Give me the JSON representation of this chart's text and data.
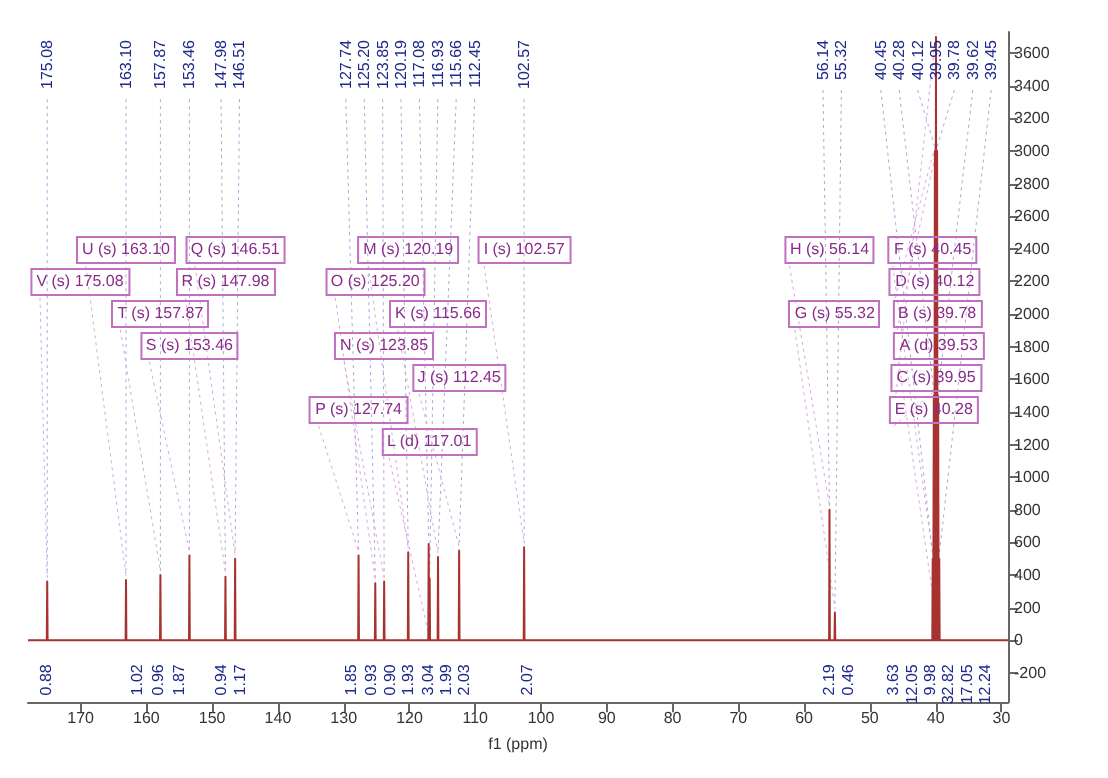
{
  "chart_data": {
    "type": "line",
    "xlabel": "f1 (ppm)",
    "xlim": [
      178,
      29
    ],
    "xticks": [
      170,
      160,
      150,
      140,
      130,
      120,
      110,
      100,
      90,
      80,
      70,
      60,
      50,
      40,
      30
    ],
    "ylim": [
      -380,
      3730
    ],
    "yticks": [
      -200,
      0,
      200,
      400,
      600,
      800,
      1000,
      1200,
      1400,
      1600,
      1800,
      2000,
      2200,
      2400,
      2600,
      2800,
      3000,
      3200,
      3400,
      3600
    ],
    "grid": false,
    "marker": "none",
    "line_style": "solid",
    "series": [
      {
        "color": "#a8322f",
        "x": [
          178,
          175.14,
          175.08,
          175.02,
          163.16,
          163.1,
          163.04,
          157.93,
          157.87,
          157.81,
          153.52,
          153.46,
          153.4,
          148.04,
          147.98,
          147.92,
          146.57,
          146.51,
          146.45,
          127.8,
          127.74,
          127.68,
          125.26,
          125.2,
          125.14,
          123.91,
          123.85,
          123.79,
          120.25,
          120.19,
          120.13,
          117.14,
          117.08,
          117.0,
          116.93,
          116.87,
          115.72,
          115.66,
          115.6,
          112.51,
          112.45,
          112.39,
          102.63,
          102.57,
          102.51,
          56.2,
          56.14,
          56.08,
          55.38,
          55.32,
          55.26,
          40.51,
          40.45,
          40.37,
          40.28,
          40.2,
          40.12,
          40.04,
          39.95,
          39.87,
          39.78,
          39.7,
          39.62,
          39.54,
          39.45,
          39.39,
          29
        ],
        "values": [
          0,
          0,
          360,
          0,
          0,
          370,
          0,
          0,
          400,
          0,
          0,
          520,
          0,
          0,
          390,
          0,
          0,
          500,
          0,
          0,
          520,
          0,
          0,
          350,
          0,
          0,
          360,
          0,
          0,
          540,
          0,
          0,
          590,
          0,
          380,
          0,
          0,
          510,
          0,
          0,
          550,
          0,
          0,
          570,
          0,
          0,
          800,
          0,
          0,
          170,
          0,
          0,
          500,
          0,
          1500,
          0,
          3000,
          0,
          3700,
          0,
          3000,
          0,
          1500,
          0,
          500,
          0,
          0
        ]
      }
    ],
    "annotations": [
      {
        "text": "175.08",
        "x": 175.08,
        "y": 360
      },
      {
        "text": "163.10",
        "x": 163.1,
        "y": 370
      },
      {
        "text": "157.87",
        "x": 157.87,
        "y": 400
      },
      {
        "text": "153.46",
        "x": 153.46,
        "y": 520
      },
      {
        "text": "147.98",
        "x": 147.98,
        "y": 390
      },
      {
        "text": "146.51",
        "x": 146.51,
        "y": 500
      },
      {
        "text": "127.74",
        "x": 127.74,
        "y": 520
      },
      {
        "text": "125.20",
        "x": 125.2,
        "y": 350
      },
      {
        "text": "123.85",
        "x": 123.85,
        "y": 360
      },
      {
        "text": "120.19",
        "x": 120.19,
        "y": 540
      },
      {
        "text": "117.08",
        "x": 117.08,
        "y": 590
      },
      {
        "text": "116.93",
        "x": 116.93,
        "y": 380
      },
      {
        "text": "115.66",
        "x": 115.66,
        "y": 510
      },
      {
        "text": "112.45",
        "x": 112.45,
        "y": 550
      },
      {
        "text": "102.57",
        "x": 102.57,
        "y": 570
      },
      {
        "text": "56.14",
        "x": 56.14,
        "y": 800
      },
      {
        "text": "55.32",
        "x": 55.32,
        "y": 170
      },
      {
        "text": "40.45",
        "x": 40.45,
        "y": 500
      },
      {
        "text": "40.28",
        "x": 40.28,
        "y": 1500
      },
      {
        "text": "40.12",
        "x": 40.12,
        "y": 3000
      },
      {
        "text": "39.95",
        "x": 39.95,
        "y": 3700
      },
      {
        "text": "39.78",
        "x": 39.78,
        "y": 3000
      },
      {
        "text": "39.62",
        "x": 39.62,
        "y": 1500
      },
      {
        "text": "39.45",
        "x": 39.45,
        "y": 500
      },
      {
        "text": "M (s) 120.19",
        "x": 120.19,
        "y": 540
      },
      {
        "text": "U (s) 163.10",
        "x": 163.1,
        "y": 370
      },
      {
        "text": "R (s) 147.98",
        "x": 147.98,
        "y": 390
      },
      {
        "text": "O (s) 125.20",
        "x": 125.2,
        "y": 350
      },
      {
        "text": "K (s) 115.66",
        "x": 115.66,
        "y": 510
      },
      {
        "text": "H (s) 56.14",
        "x": 56.14,
        "y": 800
      },
      {
        "text": "F (s) 40.45",
        "x": 40.45,
        "y": 500
      },
      {
        "text": "D (s) 40.12",
        "x": 40.12,
        "y": 3000
      },
      {
        "text": "B (s) 39.78",
        "x": 39.78,
        "y": 3000
      },
      {
        "text": "V (s) 175.08",
        "x": 175.08,
        "y": 360
      },
      {
        "text": "T (s) 157.87",
        "x": 157.87,
        "y": 400
      },
      {
        "text": "Q (s) 146.51",
        "x": 146.51,
        "y": 500
      },
      {
        "text": "N (s) 123.85",
        "x": 123.85,
        "y": 360
      },
      {
        "text": "J (s) 112.45",
        "x": 112.45,
        "y": 550
      },
      {
        "text": "I (s) 102.57",
        "x": 102.57,
        "y": 570
      },
      {
        "text": "G (s) 55.32",
        "x": 55.32,
        "y": 170
      },
      {
        "text": "A (d) 39.53",
        "x": 39.53,
        "y": 0
      },
      {
        "text": "S (s) 153.46",
        "x": 153.46,
        "y": 520
      },
      {
        "text": "P (s) 127.74",
        "x": 127.74,
        "y": 520
      },
      {
        "text": "L (d) 117.01",
        "x": 117.01,
        "y": 0
      },
      {
        "text": "C (s) 39.95",
        "x": 39.95,
        "y": 3700
      },
      {
        "text": "E (s) 40.28",
        "x": 40.28,
        "y": 1500
      },
      {
        "text": "0.88",
        "x": 175.2,
        "y": 0
      },
      {
        "text": "1.02",
        "x": 161.4,
        "y": 0
      },
      {
        "text": "0.96",
        "x": 158.3,
        "y": 0
      },
      {
        "text": "1.87",
        "x": 155.1,
        "y": 0
      },
      {
        "text": "0.94",
        "x": 148.7,
        "y": 0
      },
      {
        "text": "1.17",
        "x": 145.8,
        "y": 0
      },
      {
        "text": "1.85",
        "x": 128.9,
        "y": 0
      },
      {
        "text": "0.93",
        "x": 125.7,
        "y": 0
      },
      {
        "text": "0.90",
        "x": 123.1,
        "y": 0
      },
      {
        "text": "1.93",
        "x": 120.3,
        "y": 0
      },
      {
        "text": "3.04",
        "x": 117.0,
        "y": 0
      },
      {
        "text": "1.99",
        "x": 114.6,
        "y": 0
      },
      {
        "text": "2.03",
        "x": 111.7,
        "y": 0
      },
      {
        "text": "2.07",
        "x": 102.1,
        "y": 0
      },
      {
        "text": "2.19",
        "x": 56.0,
        "y": 0
      },
      {
        "text": "0.46",
        "x": 53.6,
        "y": 0
      },
      {
        "text": "3.63",
        "x": 45.8,
        "y": 0
      },
      {
        "text": "12.05",
        "x": 43.7,
        "y": 0
      },
      {
        "text": "9.98",
        "x": 41.1,
        "y": 0
      },
      {
        "text": "32.82",
        "x": 38.2,
        "y": 0
      },
      {
        "text": "17.05",
        "x": 35.3,
        "y": 0
      },
      {
        "text": "12.24",
        "x": 32.7,
        "y": 0
      }
    ]
  }
}
